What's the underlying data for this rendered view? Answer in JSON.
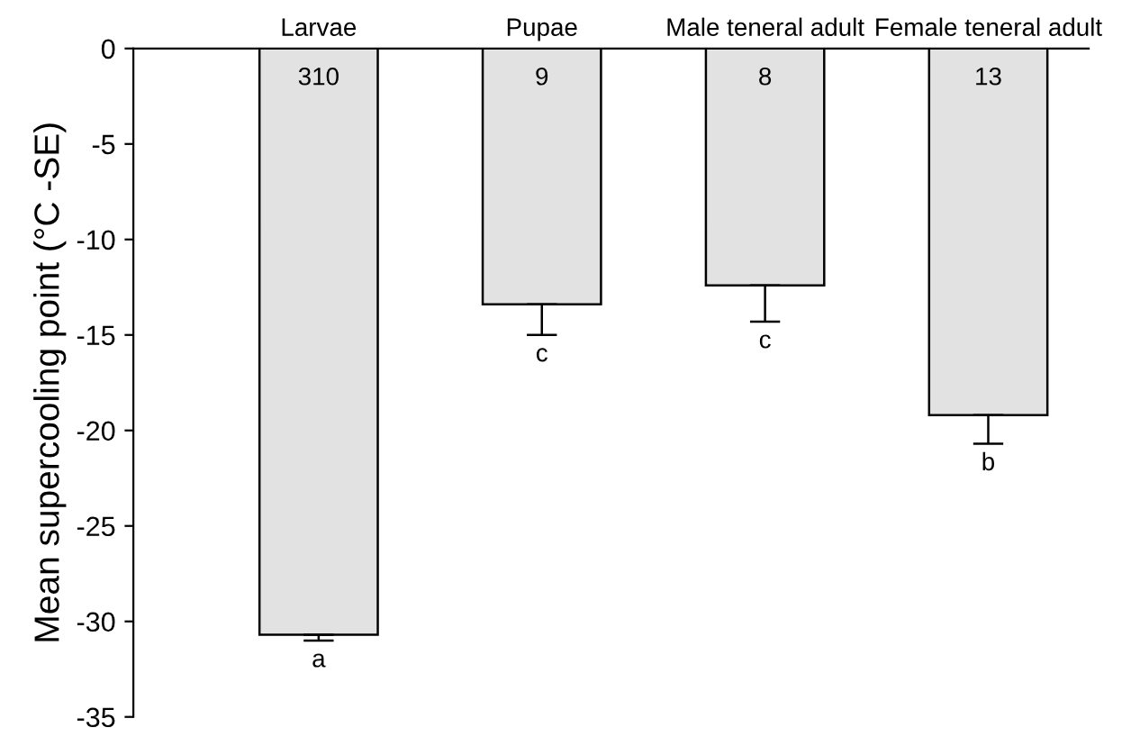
{
  "chart_data": {
    "type": "bar",
    "ylabel": "Mean supercooling point (°C -SE)",
    "categories": [
      "Larvae",
      "Pupae",
      "Male teneral adult",
      "Female teneral adult"
    ],
    "values": [
      -30.7,
      -13.4,
      -12.4,
      -19.2
    ],
    "errors": [
      [
        -31.0,
        -30.7
      ],
      [
        -15.0,
        -13.4
      ],
      [
        -14.3,
        -12.4
      ],
      [
        -20.7,
        -19.2
      ]
    ],
    "color": "#e2e2e2",
    "ylim": [
      -35,
      0
    ],
    "yticks": [
      {
        "value": 0,
        "label": "0"
      },
      {
        "value": -5,
        "label": "-5"
      },
      {
        "value": -10,
        "label": "-10"
      },
      {
        "value": -15,
        "label": "-15"
      },
      {
        "value": -20,
        "label": "-20"
      },
      {
        "value": -25,
        "label": "-25"
      },
      {
        "value": -30,
        "label": "-30"
      },
      {
        "value": -35,
        "label": "-35"
      }
    ],
    "grid": false,
    "legend": false,
    "annotations": [
      "310",
      "9",
      "8",
      "13",
      "a",
      "c",
      "c",
      "b"
    ]
  }
}
